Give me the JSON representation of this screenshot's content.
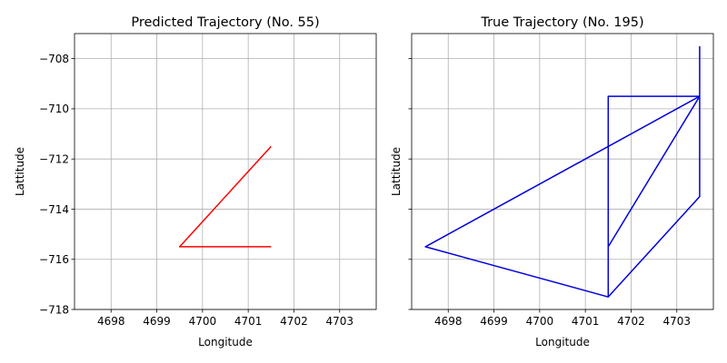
{
  "chart_data": [
    {
      "type": "line",
      "title": "Predicted Trajectory (No. 55)",
      "xlabel": "Longitude",
      "ylabel": "Lattitude",
      "xlim": [
        4697.2,
        4703.8
      ],
      "ylim": [
        -718,
        -707
      ],
      "xticks": [
        4698,
        4699,
        4700,
        4701,
        4702,
        4703
      ],
      "yticks": [
        -718,
        -716,
        -714,
        -712,
        -710,
        -708
      ],
      "grid": true,
      "series": [
        {
          "color": "#ff0000",
          "x": [
            4701.5,
            4699.5,
            4701.5
          ],
          "y": [
            -711.5,
            -715.5,
            -715.5
          ]
        }
      ]
    },
    {
      "type": "line",
      "title": "True Trajectory (No. 195)",
      "xlabel": "Longitude",
      "ylabel": "Lattitude",
      "xlim": [
        4697.2,
        4703.8
      ],
      "ylim": [
        -718,
        -707
      ],
      "xticks": [
        4698,
        4699,
        4700,
        4701,
        4702,
        4703
      ],
      "yticks": [
        -718,
        -716,
        -714,
        -712,
        -710,
        -708
      ],
      "grid": true,
      "series": [
        {
          "color": "#0000dd",
          "x": [
            4703.5,
            4703.5,
            4701.5,
            4701.5,
            4703.5,
            4703.5,
            4701.5,
            4701.5,
            4697.5,
            4703.5,
            4703.5
          ],
          "y": [
            -707.5,
            -713.5,
            -717.5,
            -709.5,
            -709.5,
            -709.5,
            -715.5,
            -717.5,
            -715.5,
            -709.5,
            -711.5
          ]
        }
      ]
    }
  ]
}
